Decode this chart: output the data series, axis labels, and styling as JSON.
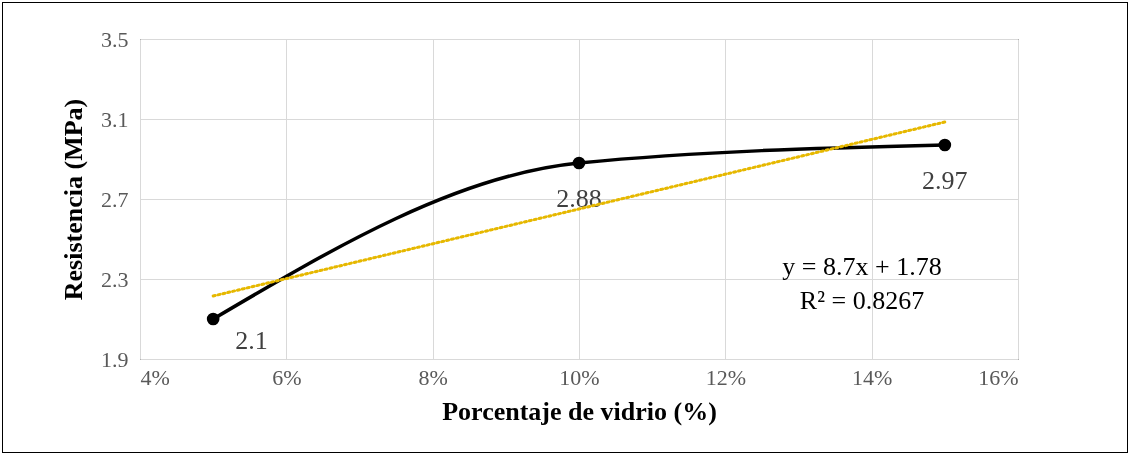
{
  "chart_data": {
    "type": "line",
    "xlabel": "Porcentaje de vidrio (%)",
    "ylabel": "Resistencia (MPa)",
    "x": [
      0.05,
      0.1,
      0.15
    ],
    "series": [
      {
        "color": "#000000",
        "values": [
          2.1,
          2.88,
          2.97
        ],
        "marker": "circle",
        "data_labels": true
      },
      {
        "type": "line",
        "x": [
          0.05,
          0.15
        ],
        "values": [
          2.215,
          3.085
        ],
        "color": "#e6b800",
        "line_style": "dotted"
      }
    ],
    "xlim": [
      0.04,
      0.16
    ],
    "xticks": [
      {
        "value": 0.04,
        "label": "4%"
      },
      {
        "value": 0.06,
        "label": "6%"
      },
      {
        "value": 0.08,
        "label": "8%"
      },
      {
        "value": 0.1,
        "label": "10%"
      },
      {
        "value": 0.12,
        "label": "12%"
      },
      {
        "value": 0.14,
        "label": "14%"
      },
      {
        "value": 0.16,
        "label": "16%"
      }
    ],
    "ylim": [
      1.9,
      3.5
    ],
    "yticks": [
      1.9,
      2.3,
      2.7,
      3.1,
      3.5
    ],
    "grid": true,
    "annotations": [
      "y = 8.7x + 1.78",
      "R² = 0.8267"
    ]
  }
}
